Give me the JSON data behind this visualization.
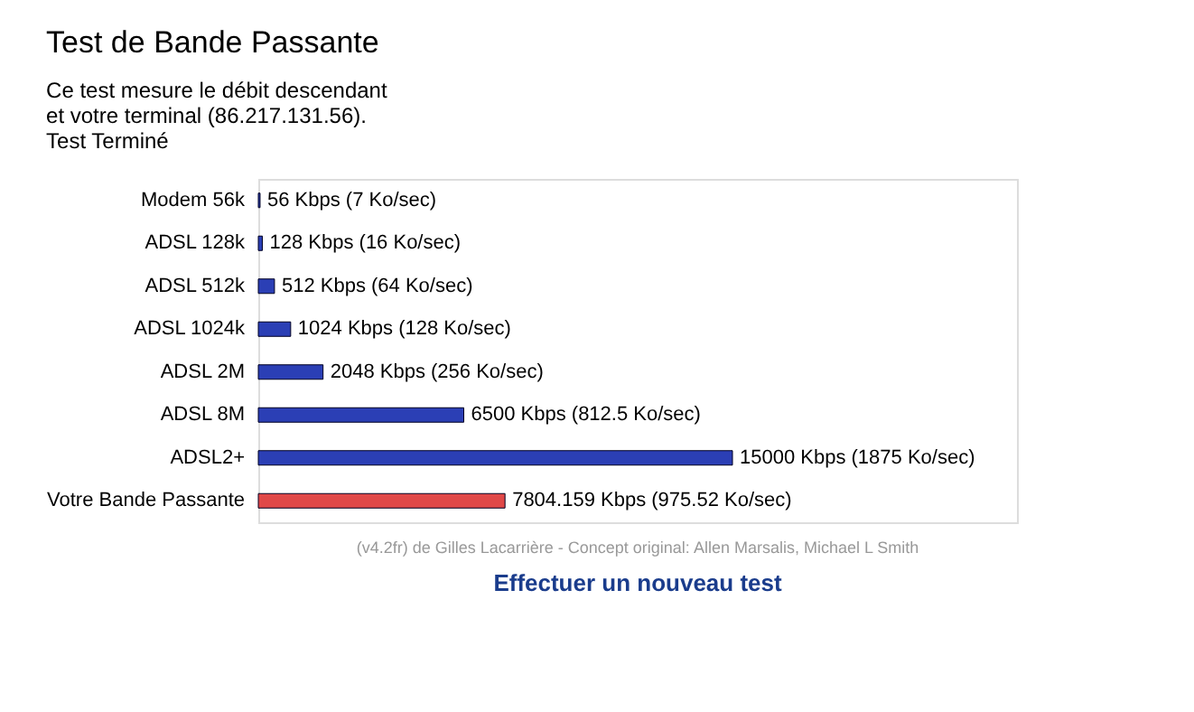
{
  "chart_data": {
    "type": "bar",
    "orientation": "horizontal",
    "title": "Test de Bande Passante",
    "annotations": [
      "Ce test mesure le débit descendant",
      "et votre terminal (86.217.131.56).",
      "Test Terminé",
      "(v4.2fr) de Gilles Lacarrière - Concept original: Allen Marsalis, Michael L Smith",
      "Effectuer un nouveau test"
    ],
    "categories": [
      "Modem 56k",
      "ADSL 128k",
      "ADSL 512k",
      "ADSL 1024k",
      "ADSL 2M",
      "ADSL 8M",
      "ADSL2+",
      "Votre Bande Passante"
    ],
    "values": [
      56,
      128,
      512,
      1024,
      2048,
      6500,
      15000,
      7804.159
    ],
    "value_labels": [
      "56 Kbps (7 Ko/sec)",
      "128 Kbps (16 Ko/sec)",
      "512 Kbps (64 Ko/sec)",
      "1024 Kbps (128 Ko/sec)",
      "2048 Kbps (256 Ko/sec)",
      "6500 Kbps (812.5 Ko/sec)",
      "15000 Kbps (1875 Ko/sec)",
      "7804.159 Kbps (975.52 Ko/sec)"
    ],
    "colors": [
      "#2b3fb5",
      "#2b3fb5",
      "#2b3fb5",
      "#2b3fb5",
      "#2b3fb5",
      "#2b3fb5",
      "#2b3fb5",
      "#e04848"
    ],
    "grid": false,
    "legend": false
  }
}
